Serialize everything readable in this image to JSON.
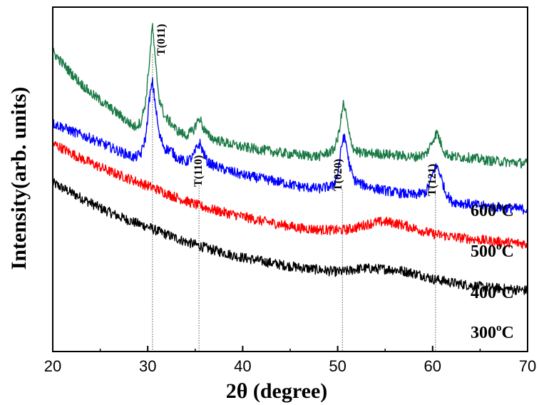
{
  "chart_data": {
    "type": "line",
    "title": "",
    "xlabel": "2θ (degree)",
    "ylabel": "Intensity(arb. units)",
    "xlim": [
      20,
      70
    ],
    "x_ticks": [
      20,
      30,
      40,
      50,
      60,
      70
    ],
    "y_ticks_shown": false,
    "grid": false,
    "unit_suffix": "oC",
    "series": [
      {
        "name": "300°C",
        "label_text": "300",
        "color": "#000000",
        "x": [
          20,
          21,
          22,
          23,
          24,
          25,
          26,
          27,
          28,
          29,
          30,
          31,
          32,
          33,
          34,
          35,
          36,
          37,
          38,
          39,
          40,
          42,
          44,
          46,
          48,
          50,
          51,
          52,
          53,
          54,
          55,
          56,
          57,
          58,
          59,
          60,
          61,
          62,
          64,
          66,
          68,
          70
        ],
        "y": [
          235,
          228,
          221,
          214,
          207,
          200,
          194,
          188,
          183,
          178,
          174,
          168,
          163,
          158,
          153,
          149,
          145,
          141,
          138,
          134,
          131,
          126,
          121,
          117,
          114,
          111,
          112,
          115,
          116,
          115,
          115,
          114,
          112,
          109,
          106,
          101,
          99,
          96,
          92,
          89,
          87,
          85
        ]
      },
      {
        "name": "400°C",
        "label_text": "400",
        "color": "#ff0000",
        "x": [
          20,
          21,
          22,
          23,
          24,
          25,
          26,
          27,
          28,
          29,
          30,
          31,
          32,
          33,
          34,
          35,
          36,
          37,
          38,
          39,
          40,
          42,
          44,
          46,
          48,
          50,
          51,
          52,
          53,
          54,
          55,
          56,
          57,
          58,
          59,
          60,
          61,
          62,
          64,
          66,
          68,
          70
        ],
        "y": [
          290,
          283,
          276,
          269,
          263,
          257,
          251,
          246,
          241,
          236,
          231,
          226,
          220,
          215,
          210,
          205,
          201,
          197,
          194,
          191,
          188,
          182,
          177,
          172,
          170,
          169,
          170,
          173,
          177,
          180,
          181,
          179,
          176,
          172,
          168,
          164,
          162,
          160,
          157,
          154,
          152,
          150
        ]
      },
      {
        "name": "500°C",
        "label_text": "500",
        "color": "#0000ff",
        "x": [
          20,
          21,
          22,
          23,
          24,
          25,
          26,
          27,
          28,
          28.6,
          29.3,
          29.8,
          30.2,
          30.5,
          30.8,
          31.2,
          31.8,
          32.5,
          33,
          34,
          34.8,
          35.2,
          35.5,
          35.8,
          36.3,
          37,
          38,
          39,
          40,
          42,
          44,
          46,
          48,
          49.5,
          50,
          50.3,
          50.6,
          50.9,
          51.2,
          51.7,
          52.5,
          54,
          56,
          58,
          59.3,
          59.8,
          60.2,
          60.5,
          60.8,
          61.3,
          62,
          64,
          66,
          68,
          70
        ],
        "y": [
          318,
          313,
          307,
          302,
          297,
          291,
          285,
          279,
          274,
          270,
          276,
          300,
          355,
          375,
          345,
          302,
          283,
          280,
          271,
          264,
          272,
          285,
          290,
          279,
          264,
          259,
          254,
          250,
          246,
          241,
          236,
          230,
          227,
          231,
          247,
          275,
          300,
          290,
          262,
          240,
          233,
          227,
          222,
          218,
          222,
          238,
          255,
          258,
          247,
          224,
          209,
          205,
          202,
          200,
          198
        ]
      },
      {
        "name": "600°C",
        "label_text": "600",
        "color": "#1a7a45",
        "x": [
          20,
          21,
          22,
          23,
          24,
          25,
          26,
          27,
          28,
          28.6,
          29.3,
          29.8,
          30.2,
          30.5,
          30.8,
          31.2,
          31.8,
          32.5,
          33,
          34,
          34.8,
          35.2,
          35.5,
          35.8,
          36.3,
          37,
          38,
          39,
          40,
          42,
          44,
          46,
          48,
          49.5,
          50,
          50.3,
          50.6,
          50.9,
          51.2,
          51.7,
          52.5,
          54,
          56,
          58,
          59.3,
          59.8,
          60.2,
          60.5,
          60.8,
          61.3,
          62,
          64,
          66,
          68,
          70
        ],
        "y": [
          418,
          402,
          387,
          373,
          360,
          350,
          340,
          330,
          319,
          313,
          320,
          350,
          408,
          455,
          403,
          353,
          327,
          318,
          309,
          301,
          308,
          320,
          325,
          313,
          302,
          296,
          292,
          288,
          285,
          281,
          277,
          274,
          272,
          280,
          296,
          320,
          345,
          330,
          302,
          282,
          276,
          276,
          274,
          271,
          275,
          288,
          300,
          305,
          292,
          277,
          272,
          270,
          266,
          264,
          262
        ]
      }
    ],
    "annotations": [
      {
        "text": "T(011)",
        "x": 30.5
      },
      {
        "text": "T(110)",
        "x": 35.4
      },
      {
        "text": "T(020)",
        "x": 50.5
      },
      {
        "text": "T(121)",
        "x": 60.3
      }
    ]
  }
}
